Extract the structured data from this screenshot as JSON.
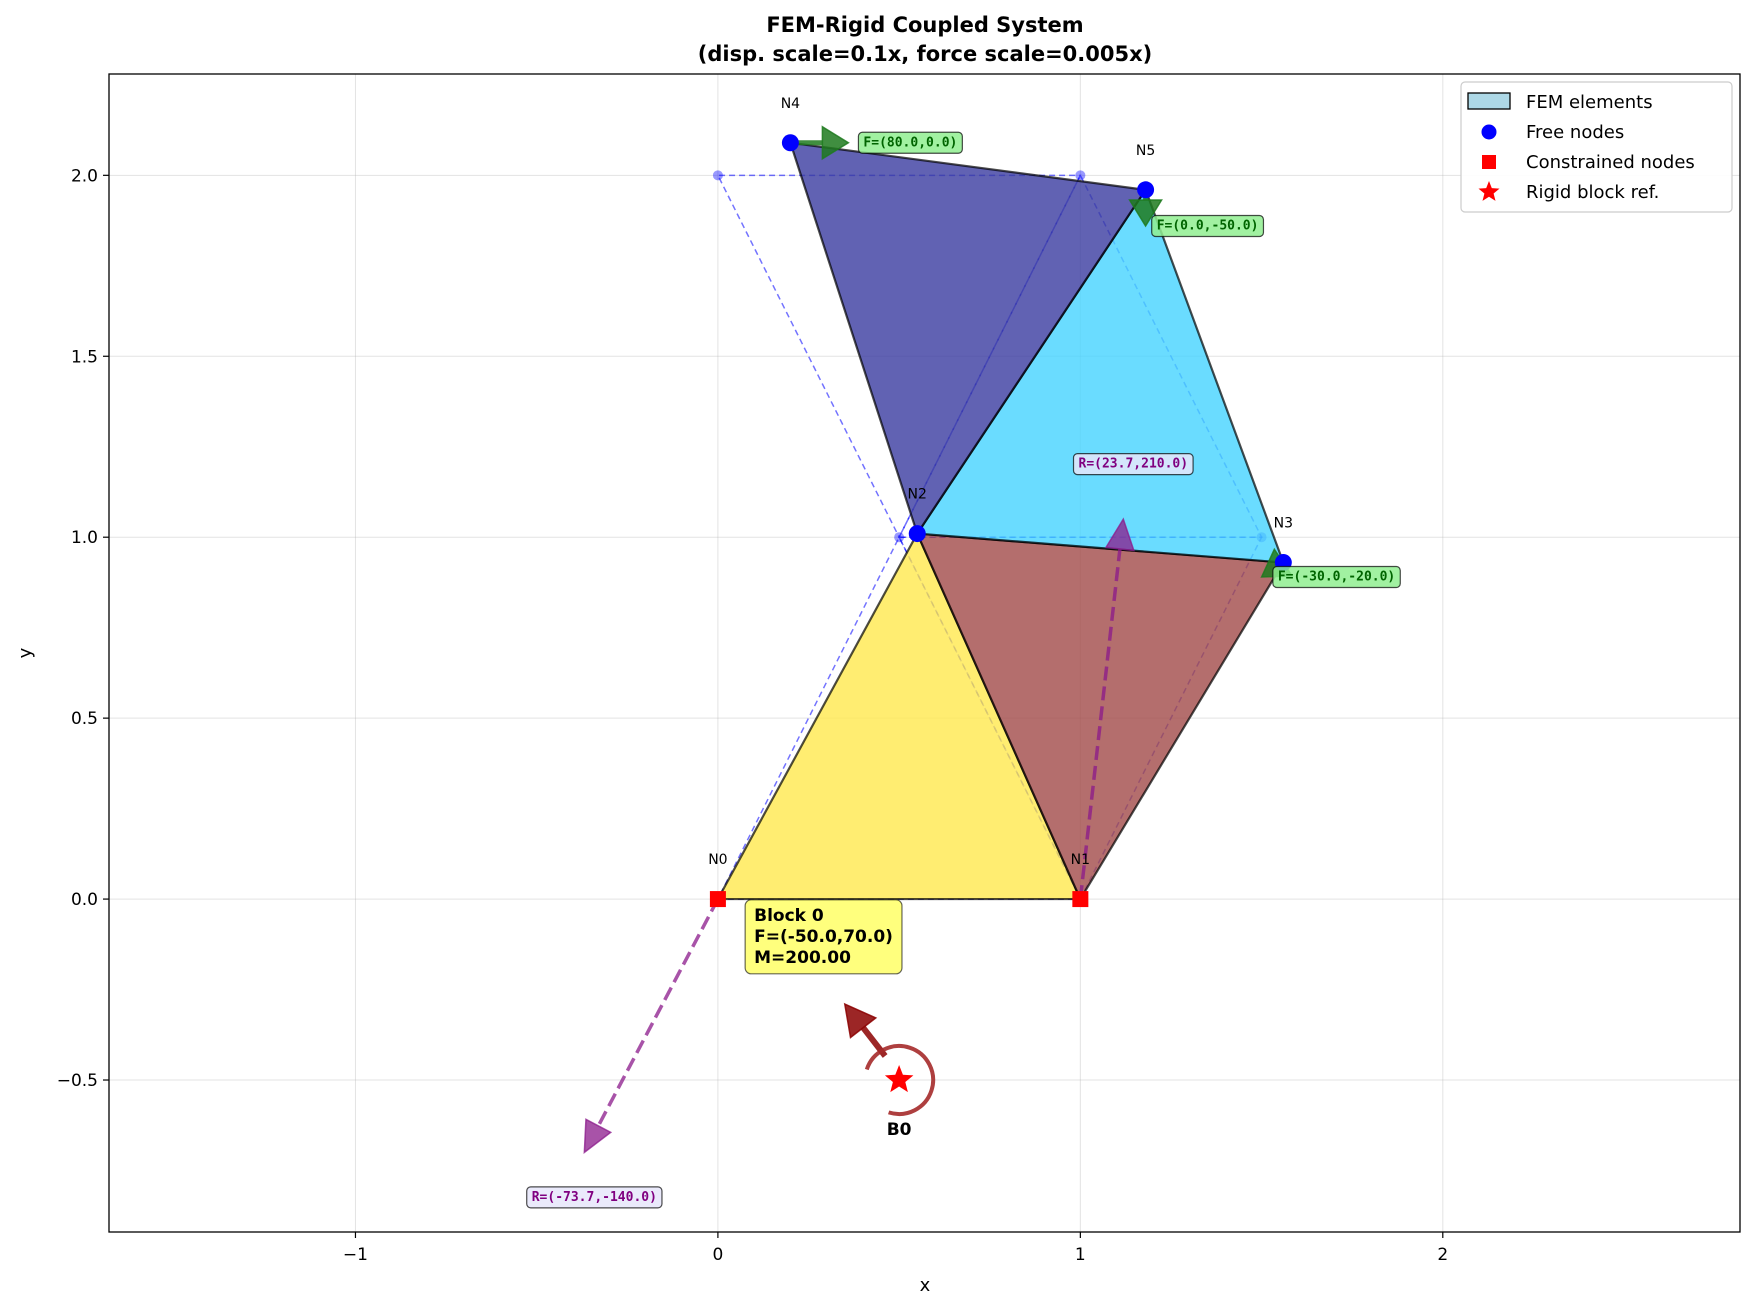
{
  "chart_data": {
    "type": "scatter",
    "title_lines": [
      "FEM-Rigid Coupled System",
      "(disp. scale=0.1x, force scale=0.005x)"
    ],
    "xlabel": "x",
    "ylabel": "y",
    "xlim": [
      -1.68,
      2.82
    ],
    "ylim": [
      -0.92,
      2.28
    ],
    "xticks": [
      -1,
      0,
      1,
      2
    ],
    "xtick_labels": [
      "−1",
      "0",
      "1",
      "2"
    ],
    "yticks": [
      -0.5,
      0.0,
      0.5,
      1.0,
      1.5,
      2.0
    ],
    "ytick_labels": [
      "−0.5",
      "0.0",
      "0.5",
      "1.0",
      "1.5",
      "2.0"
    ],
    "grid": true,
    "legend_position": "top-right",
    "legend": [
      {
        "label": "FEM elements",
        "marker": "patch"
      },
      {
        "label": "Free nodes",
        "marker": "circle"
      },
      {
        "label": "Constrained nodes",
        "marker": "square"
      },
      {
        "label": "Rigid block ref.",
        "marker": "star"
      }
    ],
    "nodes": [
      {
        "label": "N0",
        "x": 0.0,
        "y": 0.0,
        "orig_x": 0.0,
        "orig_y": 0.0,
        "constrained": true
      },
      {
        "label": "N1",
        "x": 1.0,
        "y": 0.0,
        "orig_x": 1.0,
        "orig_y": 0.0,
        "constrained": true
      },
      {
        "label": "N2",
        "x": 0.55,
        "y": 1.01,
        "orig_x": 0.5,
        "orig_y": 1.0,
        "constrained": false
      },
      {
        "label": "N3",
        "x": 1.56,
        "y": 0.93,
        "orig_x": 1.5,
        "orig_y": 1.0,
        "constrained": false
      },
      {
        "label": "N4",
        "x": 0.2,
        "y": 2.09,
        "orig_x": 0.0,
        "orig_y": 2.0,
        "constrained": false
      },
      {
        "label": "N5",
        "x": 1.18,
        "y": 1.96,
        "orig_x": 1.0,
        "orig_y": 2.0,
        "constrained": false
      }
    ],
    "elements": [
      {
        "nodes": [
          0,
          1,
          2
        ],
        "color": "#ffe84d"
      },
      {
        "nodes": [
          1,
          3,
          2
        ],
        "color": "#a14a48"
      },
      {
        "nodes": [
          2,
          3,
          5
        ],
        "color": "#45d3ff"
      },
      {
        "nodes": [
          2,
          5,
          4
        ],
        "color": "#3a3ba0"
      }
    ],
    "forces": [
      {
        "node": 4,
        "fx": 80.0,
        "fy": 0.0,
        "label": "F=(80.0,0.0)"
      },
      {
        "node": 5,
        "fx": 0.0,
        "fy": -50.0,
        "label": "F=(0.0,-50.0)"
      },
      {
        "node": 3,
        "fx": -30.0,
        "fy": -20.0,
        "label": "F=(-30.0,-20.0)"
      }
    ],
    "reactions": [
      {
        "node": 1,
        "rx": 23.7,
        "ry": 210.0,
        "label": "R=(23.7,210.0)"
      },
      {
        "node": 0,
        "rx": -73.7,
        "ry": -140.0,
        "label": "R=(-73.7,-140.0)"
      }
    ],
    "rigid_block": {
      "label": "B0",
      "x": 0.5,
      "y": -0.5,
      "fx": -50.0,
      "fy": 70.0,
      "moment": 200.0,
      "info_lines": [
        "Block 0",
        "F=(-50.0,70.0)",
        "M=200.00"
      ]
    },
    "colors": {
      "free_node": "#0000ff",
      "constrained_node": "#ff0000",
      "force_arrow": "#1f7a1f",
      "force_box": "#90ee90",
      "reaction": "#8b1a8b",
      "reaction_box": "#e6e6fa",
      "block_force": "#8b0000",
      "block_moment": "#a52a2a",
      "block_box": "#ffff66",
      "legend_patch": "#add8e6"
    }
  }
}
